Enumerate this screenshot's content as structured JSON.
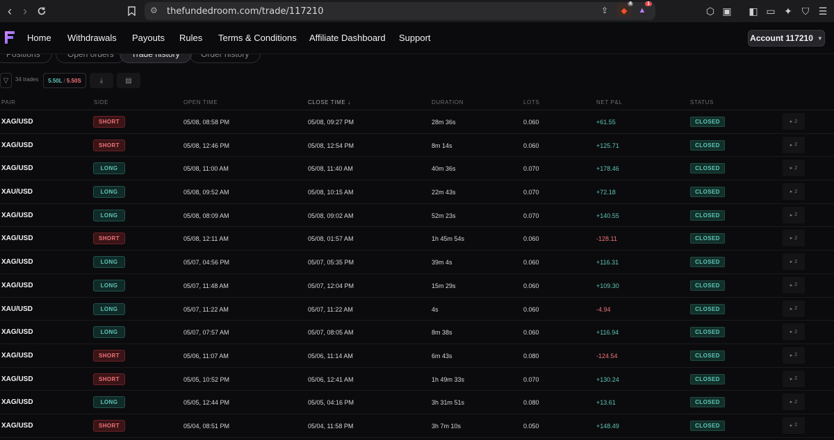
{
  "browser": {
    "url": "thefundedroom.com/trade/117210",
    "brave_badge": "4",
    "alert_badge": "1"
  },
  "nav": {
    "links": [
      "Home",
      "Withdrawals",
      "Payouts",
      "Rules",
      "Terms & Conditions",
      "Affiliate Dashboard",
      "Support"
    ],
    "account_label": "Account 117210"
  },
  "tabs": [
    {
      "label": "Positions",
      "active": false
    },
    {
      "label": "Open orders",
      "active": false
    },
    {
      "label": "Trade history",
      "active": true
    },
    {
      "label": "Order history",
      "active": false
    }
  ],
  "toolbar": {
    "trades_count": "34 trades",
    "long_value": "5.50L",
    "separator": "/",
    "short_value": "5.50S"
  },
  "colors": {
    "accent_long": "#5ec6b8",
    "accent_short": "#f0737a",
    "logo": "#a77bff"
  },
  "table": {
    "headers": {
      "pair": "PAIR",
      "side": "SIDE",
      "open_time": "OPEN TIME",
      "close_time": "CLOSE TIME",
      "duration": "DURATION",
      "lots": "LOTS",
      "net_pnl": "NET P&L",
      "status": "STATUS"
    },
    "rows": [
      {
        "pair": "XAG/USD",
        "side": "SHORT",
        "open": "05/08, 08:58 PM",
        "close": "05/08, 09:27 PM",
        "duration": "28m 36s",
        "lots": "0.060",
        "pnl": "+61.55",
        "status": "CLOSED",
        "count": "2"
      },
      {
        "pair": "XAG/USD",
        "side": "SHORT",
        "open": "05/08, 12:46 PM",
        "close": "05/08, 12:54 PM",
        "duration": "8m 14s",
        "lots": "0.060",
        "pnl": "+125.71",
        "status": "CLOSED",
        "count": "2"
      },
      {
        "pair": "XAG/USD",
        "side": "LONG",
        "open": "05/08, 11:00 AM",
        "close": "05/08, 11:40 AM",
        "duration": "40m 36s",
        "lots": "0.070",
        "pnl": "+178.46",
        "status": "CLOSED",
        "count": "2"
      },
      {
        "pair": "XAU/USD",
        "side": "LONG",
        "open": "05/08, 09:52 AM",
        "close": "05/08, 10:15 AM",
        "duration": "22m 43s",
        "lots": "0.070",
        "pnl": "+72.18",
        "status": "CLOSED",
        "count": "2"
      },
      {
        "pair": "XAG/USD",
        "side": "LONG",
        "open": "05/08, 08:09 AM",
        "close": "05/08, 09:02 AM",
        "duration": "52m 23s",
        "lots": "0.070",
        "pnl": "+140.55",
        "status": "CLOSED",
        "count": "2"
      },
      {
        "pair": "XAG/USD",
        "side": "SHORT",
        "open": "05/08, 12:11 AM",
        "close": "05/08, 01:57 AM",
        "duration": "1h 45m 54s",
        "lots": "0.060",
        "pnl": "-128.11",
        "status": "CLOSED",
        "count": "2"
      },
      {
        "pair": "XAG/USD",
        "side": "LONG",
        "open": "05/07, 04:56 PM",
        "close": "05/07, 05:35 PM",
        "duration": "39m 4s",
        "lots": "0.060",
        "pnl": "+116.31",
        "status": "CLOSED",
        "count": "2"
      },
      {
        "pair": "XAG/USD",
        "side": "LONG",
        "open": "05/07, 11:48 AM",
        "close": "05/07, 12:04 PM",
        "duration": "15m 29s",
        "lots": "0.060",
        "pnl": "+109.30",
        "status": "CLOSED",
        "count": "2"
      },
      {
        "pair": "XAU/USD",
        "side": "LONG",
        "open": "05/07, 11:22 AM",
        "close": "05/07, 11:22 AM",
        "duration": "4s",
        "lots": "0.060",
        "pnl": "-4.94",
        "status": "CLOSED",
        "count": "2"
      },
      {
        "pair": "XAG/USD",
        "side": "LONG",
        "open": "05/07, 07:57 AM",
        "close": "05/07, 08:05 AM",
        "duration": "8m 38s",
        "lots": "0.060",
        "pnl": "+116.94",
        "status": "CLOSED",
        "count": "2"
      },
      {
        "pair": "XAG/USD",
        "side": "SHORT",
        "open": "05/06, 11:07 AM",
        "close": "05/06, 11:14 AM",
        "duration": "6m 43s",
        "lots": "0.080",
        "pnl": "-124.54",
        "status": "CLOSED",
        "count": "2"
      },
      {
        "pair": "XAG/USD",
        "side": "SHORT",
        "open": "05/05, 10:52 PM",
        "close": "05/06, 12:41 AM",
        "duration": "1h 49m 33s",
        "lots": "0.070",
        "pnl": "+130.24",
        "status": "CLOSED",
        "count": "2"
      },
      {
        "pair": "XAG/USD",
        "side": "LONG",
        "open": "05/05, 12:44 PM",
        "close": "05/05, 04:16 PM",
        "duration": "3h 31m 51s",
        "lots": "0.080",
        "pnl": "+13.61",
        "status": "CLOSED",
        "count": "2"
      },
      {
        "pair": "XAG/USD",
        "side": "SHORT",
        "open": "05/04, 08:51 PM",
        "close": "05/04, 11:58 PM",
        "duration": "3h 7m 10s",
        "lots": "0.050",
        "pnl": "+148.49",
        "status": "CLOSED",
        "count": "2"
      }
    ]
  }
}
